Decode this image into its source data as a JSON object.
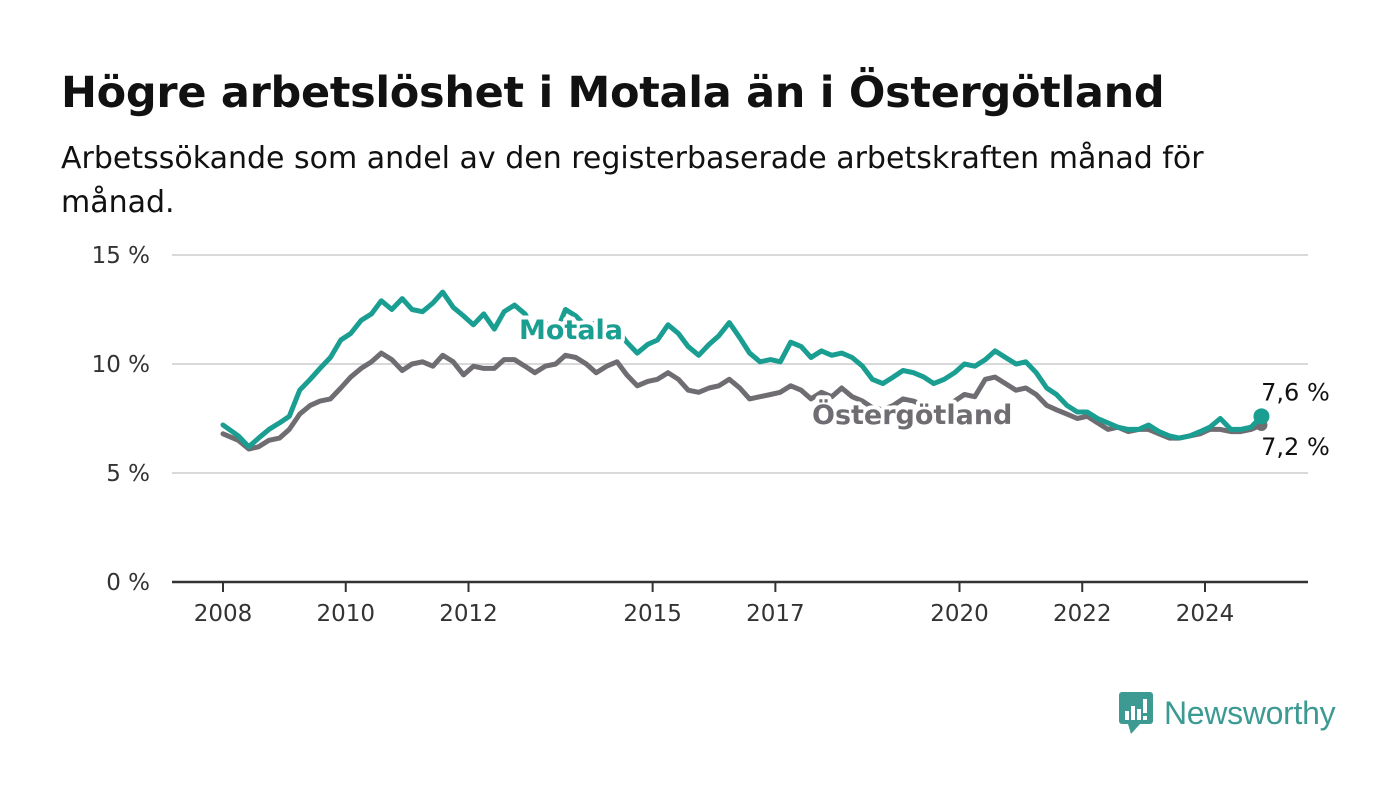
{
  "title": "Högre arbetslöshet i Motala än i Östergötland",
  "subtitle": "Arbetssökande som andel av den registerbaserade arbetskraften månad för månad.",
  "brand": {
    "name": "Newsworthy",
    "color": "#3d9a93",
    "icon": "bar-chart-logo-icon"
  },
  "chart_data": {
    "type": "line",
    "title": "Högre arbetslöshet i Motala än i Östergötland",
    "subtitle": "Arbetssökande som andel av den registerbaserade arbetskraften månad för månad.",
    "xlabel": "",
    "ylabel": "",
    "xlim": [
      2007.2,
      2025.8
    ],
    "ylim": [
      0,
      15
    ],
    "grid": true,
    "x_ticks": [
      2008,
      2010,
      2012,
      2015,
      2017,
      2020,
      2022,
      2024
    ],
    "y_ticks": [
      {
        "value": 0,
        "label": "0 %"
      },
      {
        "value": 5,
        "label": "5 %"
      },
      {
        "value": 10,
        "label": "10 %"
      },
      {
        "value": 15,
        "label": "15 %"
      }
    ],
    "series": [
      {
        "name": "Motala",
        "color": "#1a9e92",
        "end_label": "7,6 %",
        "points": [
          [
            2008.0,
            7.2
          ],
          [
            2008.25,
            6.7
          ],
          [
            2008.42,
            6.2
          ],
          [
            2008.58,
            6.6
          ],
          [
            2008.75,
            7.0
          ],
          [
            2008.92,
            7.3
          ],
          [
            2009.08,
            7.6
          ],
          [
            2009.25,
            8.8
          ],
          [
            2009.42,
            9.3
          ],
          [
            2009.58,
            9.8
          ],
          [
            2009.75,
            10.3
          ],
          [
            2009.92,
            11.1
          ],
          [
            2010.08,
            11.4
          ],
          [
            2010.25,
            12.0
          ],
          [
            2010.42,
            12.3
          ],
          [
            2010.58,
            12.9
          ],
          [
            2010.75,
            12.5
          ],
          [
            2010.92,
            13.0
          ],
          [
            2011.08,
            12.5
          ],
          [
            2011.25,
            12.4
          ],
          [
            2011.42,
            12.8
          ],
          [
            2011.58,
            13.3
          ],
          [
            2011.75,
            12.6
          ],
          [
            2011.92,
            12.2
          ],
          [
            2012.08,
            11.8
          ],
          [
            2012.25,
            12.3
          ],
          [
            2012.42,
            11.6
          ],
          [
            2012.58,
            12.4
          ],
          [
            2012.75,
            12.7
          ],
          [
            2012.92,
            12.3
          ],
          [
            2013.08,
            11.5
          ],
          [
            2013.25,
            11.9
          ],
          [
            2013.42,
            11.4
          ],
          [
            2013.58,
            12.5
          ],
          [
            2013.75,
            12.2
          ],
          [
            2013.92,
            11.7
          ],
          [
            2014.08,
            11.9
          ],
          [
            2014.25,
            11.3
          ],
          [
            2014.42,
            11.6
          ],
          [
            2014.58,
            11.0
          ],
          [
            2014.75,
            10.5
          ],
          [
            2014.92,
            10.9
          ],
          [
            2015.08,
            11.1
          ],
          [
            2015.25,
            11.8
          ],
          [
            2015.42,
            11.4
          ],
          [
            2015.58,
            10.8
          ],
          [
            2015.75,
            10.4
          ],
          [
            2015.92,
            10.9
          ],
          [
            2016.08,
            11.3
          ],
          [
            2016.25,
            11.9
          ],
          [
            2016.42,
            11.2
          ],
          [
            2016.58,
            10.5
          ],
          [
            2016.75,
            10.1
          ],
          [
            2016.92,
            10.2
          ],
          [
            2017.08,
            10.1
          ],
          [
            2017.25,
            11.0
          ],
          [
            2017.42,
            10.8
          ],
          [
            2017.58,
            10.3
          ],
          [
            2017.75,
            10.6
          ],
          [
            2017.92,
            10.4
          ],
          [
            2018.08,
            10.5
          ],
          [
            2018.25,
            10.3
          ],
          [
            2018.42,
            9.9
          ],
          [
            2018.58,
            9.3
          ],
          [
            2018.75,
            9.1
          ],
          [
            2018.92,
            9.4
          ],
          [
            2019.08,
            9.7
          ],
          [
            2019.25,
            9.6
          ],
          [
            2019.42,
            9.4
          ],
          [
            2019.58,
            9.1
          ],
          [
            2019.75,
            9.3
          ],
          [
            2019.92,
            9.6
          ],
          [
            2020.08,
            10.0
          ],
          [
            2020.25,
            9.9
          ],
          [
            2020.42,
            10.2
          ],
          [
            2020.58,
            10.6
          ],
          [
            2020.75,
            10.3
          ],
          [
            2020.92,
            10.0
          ],
          [
            2021.08,
            10.1
          ],
          [
            2021.25,
            9.6
          ],
          [
            2021.42,
            8.9
          ],
          [
            2021.58,
            8.6
          ],
          [
            2021.75,
            8.1
          ],
          [
            2021.92,
            7.8
          ],
          [
            2022.08,
            7.8
          ],
          [
            2022.25,
            7.5
          ],
          [
            2022.42,
            7.3
          ],
          [
            2022.58,
            7.1
          ],
          [
            2022.75,
            7.0
          ],
          [
            2022.92,
            7.0
          ],
          [
            2023.08,
            7.2
          ],
          [
            2023.25,
            6.9
          ],
          [
            2023.42,
            6.7
          ],
          [
            2023.58,
            6.6
          ],
          [
            2023.75,
            6.7
          ],
          [
            2023.92,
            6.9
          ],
          [
            2024.08,
            7.1
          ],
          [
            2024.25,
            7.5
          ],
          [
            2024.42,
            7.0
          ],
          [
            2024.58,
            7.0
          ],
          [
            2024.75,
            7.1
          ],
          [
            2024.92,
            7.6
          ]
        ]
      },
      {
        "name": "Östergötland",
        "color": "#6f6d72",
        "end_label": "7,2 %",
        "points": [
          [
            2008.0,
            6.8
          ],
          [
            2008.25,
            6.5
          ],
          [
            2008.42,
            6.1
          ],
          [
            2008.58,
            6.2
          ],
          [
            2008.75,
            6.5
          ],
          [
            2008.92,
            6.6
          ],
          [
            2009.08,
            7.0
          ],
          [
            2009.25,
            7.7
          ],
          [
            2009.42,
            8.1
          ],
          [
            2009.58,
            8.3
          ],
          [
            2009.75,
            8.4
          ],
          [
            2009.92,
            8.9
          ],
          [
            2010.08,
            9.4
          ],
          [
            2010.25,
            9.8
          ],
          [
            2010.42,
            10.1
          ],
          [
            2010.58,
            10.5
          ],
          [
            2010.75,
            10.2
          ],
          [
            2010.92,
            9.7
          ],
          [
            2011.08,
            10.0
          ],
          [
            2011.25,
            10.1
          ],
          [
            2011.42,
            9.9
          ],
          [
            2011.58,
            10.4
          ],
          [
            2011.75,
            10.1
          ],
          [
            2011.92,
            9.5
          ],
          [
            2012.08,
            9.9
          ],
          [
            2012.25,
            9.8
          ],
          [
            2012.42,
            9.8
          ],
          [
            2012.58,
            10.2
          ],
          [
            2012.75,
            10.2
          ],
          [
            2012.92,
            9.9
          ],
          [
            2013.08,
            9.6
          ],
          [
            2013.25,
            9.9
          ],
          [
            2013.42,
            10.0
          ],
          [
            2013.58,
            10.4
          ],
          [
            2013.75,
            10.3
          ],
          [
            2013.92,
            10.0
          ],
          [
            2014.08,
            9.6
          ],
          [
            2014.25,
            9.9
          ],
          [
            2014.42,
            10.1
          ],
          [
            2014.58,
            9.5
          ],
          [
            2014.75,
            9.0
          ],
          [
            2014.92,
            9.2
          ],
          [
            2015.08,
            9.3
          ],
          [
            2015.25,
            9.6
          ],
          [
            2015.42,
            9.3
          ],
          [
            2015.58,
            8.8
          ],
          [
            2015.75,
            8.7
          ],
          [
            2015.92,
            8.9
          ],
          [
            2016.08,
            9.0
          ],
          [
            2016.25,
            9.3
          ],
          [
            2016.42,
            8.9
          ],
          [
            2016.58,
            8.4
          ],
          [
            2016.75,
            8.5
          ],
          [
            2016.92,
            8.6
          ],
          [
            2017.08,
            8.7
          ],
          [
            2017.25,
            9.0
          ],
          [
            2017.42,
            8.8
          ],
          [
            2017.58,
            8.4
          ],
          [
            2017.75,
            8.7
          ],
          [
            2017.92,
            8.5
          ],
          [
            2018.08,
            8.9
          ],
          [
            2018.25,
            8.5
          ],
          [
            2018.42,
            8.3
          ],
          [
            2018.58,
            8.0
          ],
          [
            2018.75,
            7.9
          ],
          [
            2018.92,
            8.1
          ],
          [
            2019.08,
            8.4
          ],
          [
            2019.25,
            8.3
          ],
          [
            2019.42,
            8.1
          ],
          [
            2019.58,
            7.9
          ],
          [
            2019.75,
            8.0
          ],
          [
            2019.92,
            8.3
          ],
          [
            2020.08,
            8.6
          ],
          [
            2020.25,
            8.5
          ],
          [
            2020.42,
            9.3
          ],
          [
            2020.58,
            9.4
          ],
          [
            2020.75,
            9.1
          ],
          [
            2020.92,
            8.8
          ],
          [
            2021.08,
            8.9
          ],
          [
            2021.25,
            8.6
          ],
          [
            2021.42,
            8.1
          ],
          [
            2021.58,
            7.9
          ],
          [
            2021.75,
            7.7
          ],
          [
            2021.92,
            7.5
          ],
          [
            2022.08,
            7.6
          ],
          [
            2022.25,
            7.3
          ],
          [
            2022.42,
            7.0
          ],
          [
            2022.58,
            7.1
          ],
          [
            2022.75,
            6.9
          ],
          [
            2022.92,
            7.0
          ],
          [
            2023.08,
            7.0
          ],
          [
            2023.25,
            6.8
          ],
          [
            2023.42,
            6.6
          ],
          [
            2023.58,
            6.6
          ],
          [
            2023.75,
            6.7
          ],
          [
            2023.92,
            6.8
          ],
          [
            2024.08,
            7.0
          ],
          [
            2024.25,
            7.0
          ],
          [
            2024.42,
            6.9
          ],
          [
            2024.58,
            6.9
          ],
          [
            2024.75,
            7.0
          ],
          [
            2024.92,
            7.2
          ]
        ]
      }
    ]
  }
}
